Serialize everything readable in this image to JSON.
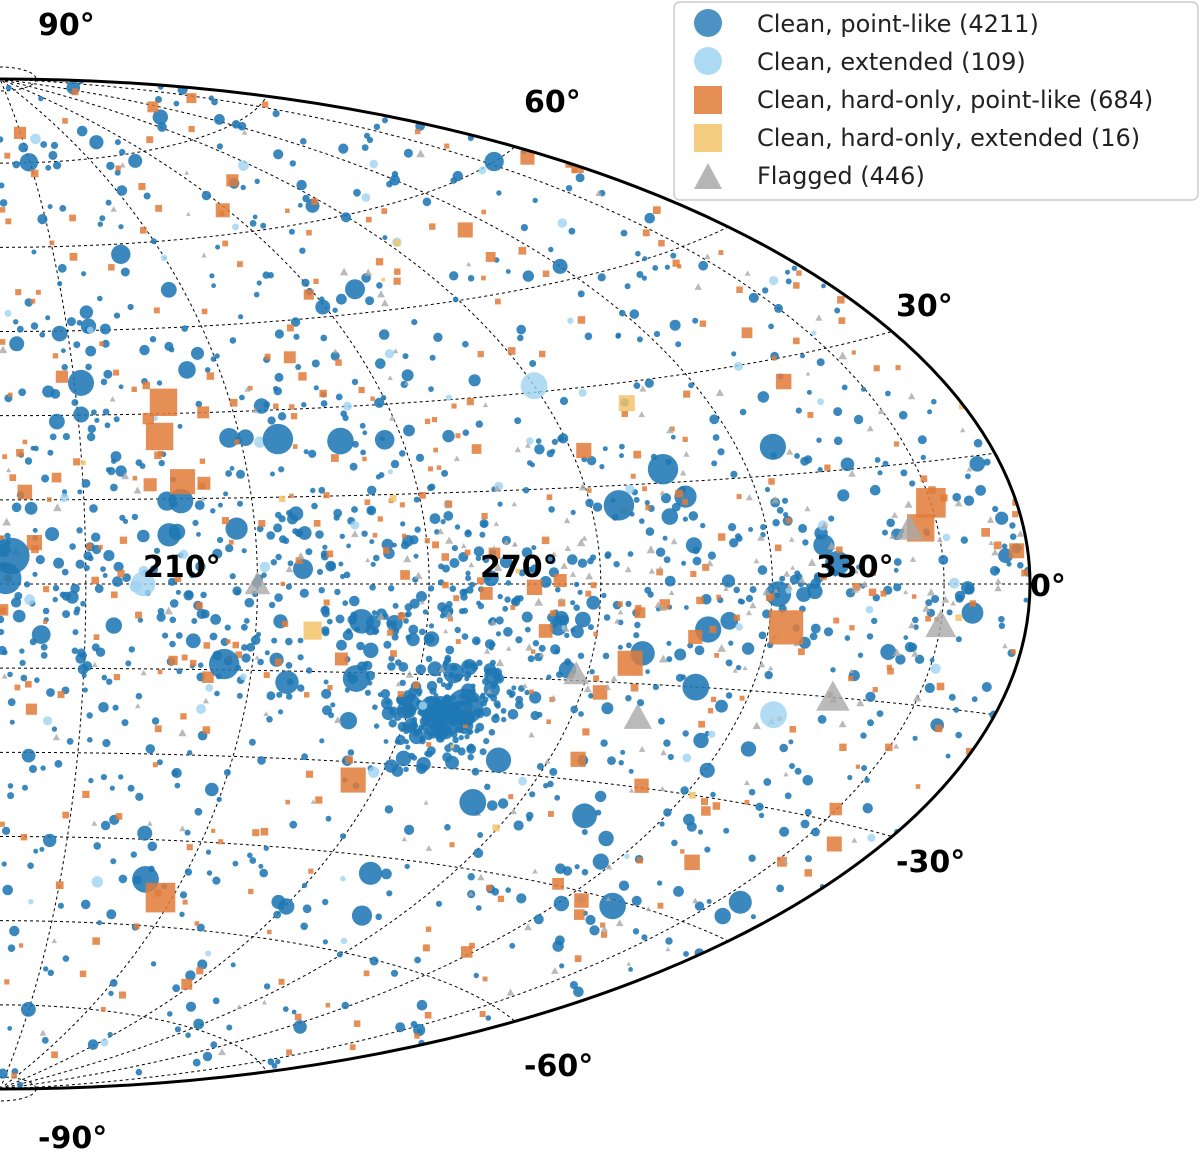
{
  "chart_data": {
    "type": "scatter",
    "projection": "aitoff",
    "coordinate_system": "galactic",
    "longitude_labels": [
      "210°",
      "270°",
      "330°"
    ],
    "longitude_ticks": [
      210,
      270,
      330
    ],
    "latitude_labels": [
      {
        "value": 90,
        "text": "90°"
      },
      {
        "value": 60,
        "text": "60°"
      },
      {
        "value": 30,
        "text": "30°"
      },
      {
        "value": 0,
        "text": "0°"
      },
      {
        "value": -30,
        "text": "-30°"
      },
      {
        "value": -60,
        "text": "-60°"
      },
      {
        "value": -90,
        "text": "-90°"
      }
    ],
    "lon_range": [
      180,
      360
    ],
    "lat_range": [
      -90,
      90
    ],
    "legend_position": "top-right",
    "series": [
      {
        "name": "Clean, point-like",
        "label": "Clean, point-like (4211)",
        "count": 4211,
        "marker": "circle",
        "color": "#1f77b4"
      },
      {
        "name": "Clean, extended",
        "label": "Clean, extended (109)",
        "count": 109,
        "marker": "circle",
        "color": "#9fd3f1"
      },
      {
        "name": "Clean, hard-only, point-like",
        "label": "Clean, hard-only, point-like (684)",
        "count": 684,
        "marker": "square",
        "color": "#e07b39"
      },
      {
        "name": "Clean, hard-only, extended",
        "label": "Clean, hard-only, extended (16)",
        "count": 16,
        "marker": "square",
        "color": "#f2c46b"
      },
      {
        "name": "Flagged",
        "label": "Flagged (446)",
        "count": 446,
        "marker": "triangle",
        "color": "#a9a9a9"
      }
    ],
    "highlight_points": [
      {
        "series": 0,
        "l": 262,
        "b": -22,
        "size": 3
      },
      {
        "series": 0,
        "l": 265,
        "b": -20,
        "size": 3
      },
      {
        "series": 0,
        "l": 232,
        "b": 25,
        "size": 2.5
      },
      {
        "series": 0,
        "l": 300,
        "b": 17,
        "size": 2.5
      },
      {
        "series": 0,
        "l": 290,
        "b": 12,
        "size": 2.5
      },
      {
        "series": 0,
        "l": 220,
        "b": -14,
        "size": 2.5
      },
      {
        "series": 0,
        "l": 244,
        "b": -16,
        "size": 2.2
      },
      {
        "series": 0,
        "l": 305,
        "b": -15,
        "size": 2.2
      },
      {
        "series": 0,
        "l": 276,
        "b": -35,
        "size": 2.2
      },
      {
        "series": 0,
        "l": 216,
        "b": -52,
        "size": 2.2
      },
      {
        "series": 0,
        "l": 182,
        "b": 5,
        "size": 3
      },
      {
        "series": 0,
        "l": 181,
        "b": 1,
        "size": 2.6
      },
      {
        "series": 1,
        "l": 285,
        "b": 31,
        "size": 2.2
      },
      {
        "series": 1,
        "l": 321,
        "b": -18,
        "size": 2.2
      },
      {
        "series": 1,
        "l": 205,
        "b": 0,
        "size": 2
      },
      {
        "series": 2,
        "l": 318,
        "b": -6,
        "size": 3
      },
      {
        "series": 2,
        "l": 345,
        "b": 10,
        "size": 2.6
      },
      {
        "series": 2,
        "l": 342,
        "b": 7,
        "size": 2.4
      },
      {
        "series": 2,
        "l": 212,
        "b": 32,
        "size": 2.4
      },
      {
        "series": 2,
        "l": 210,
        "b": 26,
        "size": 2.4
      },
      {
        "series": 2,
        "l": 213,
        "b": 18,
        "size": 2.2
      },
      {
        "series": 2,
        "l": 222,
        "b": -55,
        "size": 2.6
      },
      {
        "series": 2,
        "l": 250,
        "b": -33,
        "size": 2.2
      },
      {
        "series": 2,
        "l": 292,
        "b": -12,
        "size": 2.2
      },
      {
        "series": 3,
        "l": 300,
        "b": 27,
        "size": 1.4
      },
      {
        "series": 3,
        "l": 235,
        "b": -8,
        "size": 1.6
      },
      {
        "series": 4,
        "l": 345,
        "b": -5,
        "size": 2.4
      },
      {
        "series": 4,
        "l": 330,
        "b": -15,
        "size": 2.6
      },
      {
        "series": 4,
        "l": 340,
        "b": 7,
        "size": 2.2
      },
      {
        "series": 4,
        "l": 297,
        "b": -20,
        "size": 2.2
      },
      {
        "series": 4,
        "l": 283,
        "b": -14,
        "size": 2
      },
      {
        "series": 4,
        "l": 225,
        "b": 0,
        "size": 2
      }
    ]
  }
}
